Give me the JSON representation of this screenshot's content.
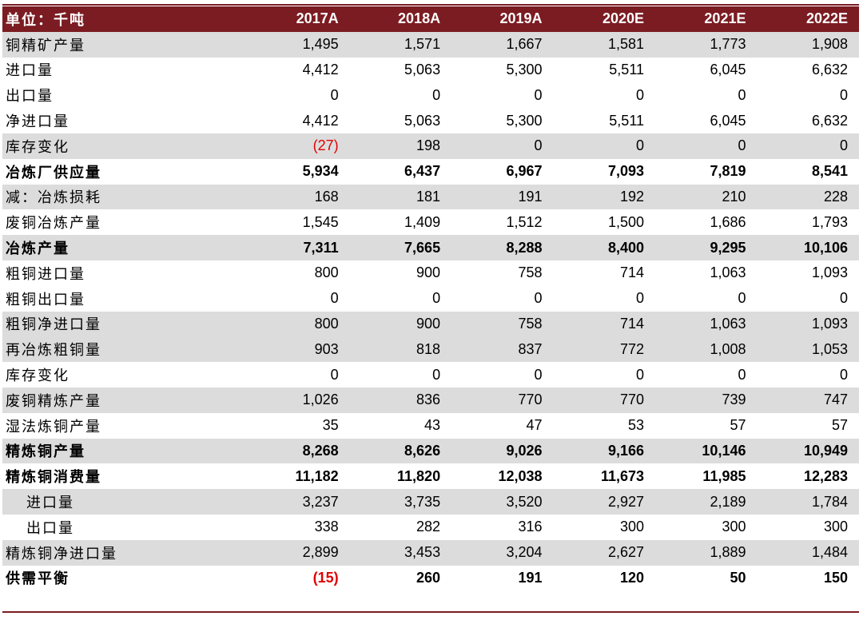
{
  "header": {
    "unit_label": "单位：千吨",
    "years": [
      "2017A",
      "2018A",
      "2019A",
      "2020E",
      "2021E",
      "2022E"
    ]
  },
  "rows": [
    {
      "label": "铜精矿产量",
      "values": [
        "1,495",
        "1,571",
        "1,667",
        "1,581",
        "1,773",
        "1,908"
      ],
      "shade": true,
      "bold": false,
      "indent": false
    },
    {
      "label": "进口量",
      "values": [
        "4,412",
        "5,063",
        "5,300",
        "5,511",
        "6,045",
        "6,632"
      ],
      "shade": false,
      "bold": false,
      "indent": false
    },
    {
      "label": "出口量",
      "values": [
        "0",
        "0",
        "0",
        "0",
        "0",
        "0"
      ],
      "shade": false,
      "bold": false,
      "indent": false
    },
    {
      "label": "净进口量",
      "values": [
        "4,412",
        "5,063",
        "5,300",
        "5,511",
        "6,045",
        "6,632"
      ],
      "shade": false,
      "bold": false,
      "indent": false
    },
    {
      "label": "库存变化",
      "values": [
        "(27)",
        "198",
        "0",
        "0",
        "0",
        "0"
      ],
      "shade": true,
      "bold": false,
      "indent": false
    },
    {
      "label": "冶炼厂供应量",
      "values": [
        "5,934",
        "6,437",
        "6,967",
        "7,093",
        "7,819",
        "8,541"
      ],
      "shade": false,
      "bold": true,
      "indent": false
    },
    {
      "label": "减：冶炼损耗",
      "values": [
        "168",
        "181",
        "191",
        "192",
        "210",
        "228"
      ],
      "shade": true,
      "bold": false,
      "indent": false
    },
    {
      "label": "废铜冶炼产量",
      "values": [
        "1,545",
        "1,409",
        "1,512",
        "1,500",
        "1,686",
        "1,793"
      ],
      "shade": false,
      "bold": false,
      "indent": false
    },
    {
      "label": "冶炼产量",
      "values": [
        "7,311",
        "7,665",
        "8,288",
        "8,400",
        "9,295",
        "10,106"
      ],
      "shade": true,
      "bold": true,
      "indent": false
    },
    {
      "label": "粗铜进口量",
      "values": [
        "800",
        "900",
        "758",
        "714",
        "1,063",
        "1,093"
      ],
      "shade": false,
      "bold": false,
      "indent": false
    },
    {
      "label": "粗铜出口量",
      "values": [
        "0",
        "0",
        "0",
        "0",
        "0",
        "0"
      ],
      "shade": false,
      "bold": false,
      "indent": false
    },
    {
      "label": "粗铜净进口量",
      "values": [
        "800",
        "900",
        "758",
        "714",
        "1,063",
        "1,093"
      ],
      "shade": true,
      "bold": false,
      "indent": false
    },
    {
      "label": "再冶炼粗铜量",
      "values": [
        "903",
        "818",
        "837",
        "772",
        "1,008",
        "1,053"
      ],
      "shade": true,
      "bold": false,
      "indent": false
    },
    {
      "label": "库存变化",
      "values": [
        "0",
        "0",
        "0",
        "0",
        "0",
        "0"
      ],
      "shade": false,
      "bold": false,
      "indent": false
    },
    {
      "label": "废铜精炼产量",
      "values": [
        "1,026",
        "836",
        "770",
        "770",
        "739",
        "747"
      ],
      "shade": true,
      "bold": false,
      "indent": false
    },
    {
      "label": "湿法炼铜产量",
      "values": [
        "35",
        "43",
        "47",
        "53",
        "57",
        "57"
      ],
      "shade": false,
      "bold": false,
      "indent": false
    },
    {
      "label": "精炼铜产量",
      "values": [
        "8,268",
        "8,626",
        "9,026",
        "9,166",
        "10,146",
        "10,949"
      ],
      "shade": true,
      "bold": true,
      "indent": false
    },
    {
      "label": "精炼铜消费量",
      "values": [
        "11,182",
        "11,820",
        "12,038",
        "11,673",
        "11,985",
        "12,283"
      ],
      "shade": false,
      "bold": true,
      "indent": false
    },
    {
      "label": "进口量",
      "values": [
        "3,237",
        "3,735",
        "3,520",
        "2,927",
        "2,189",
        "1,784"
      ],
      "shade": true,
      "bold": false,
      "indent": true
    },
    {
      "label": "出口量",
      "values": [
        "338",
        "282",
        "316",
        "300",
        "300",
        "300"
      ],
      "shade": false,
      "bold": false,
      "indent": true
    },
    {
      "label": "精炼铜净进口量",
      "values": [
        "2,899",
        "3,453",
        "3,204",
        "2,627",
        "1,889",
        "1,484"
      ],
      "shade": true,
      "bold": false,
      "indent": false
    },
    {
      "label": "供需平衡",
      "values": [
        "(15)",
        "260",
        "191",
        "120",
        "50",
        "150"
      ],
      "shade": false,
      "bold": true,
      "indent": false
    }
  ],
  "colors": {
    "header_bg": "#7b1c22",
    "shade_bg": "#dcdcdc",
    "negative": "#e00000"
  }
}
